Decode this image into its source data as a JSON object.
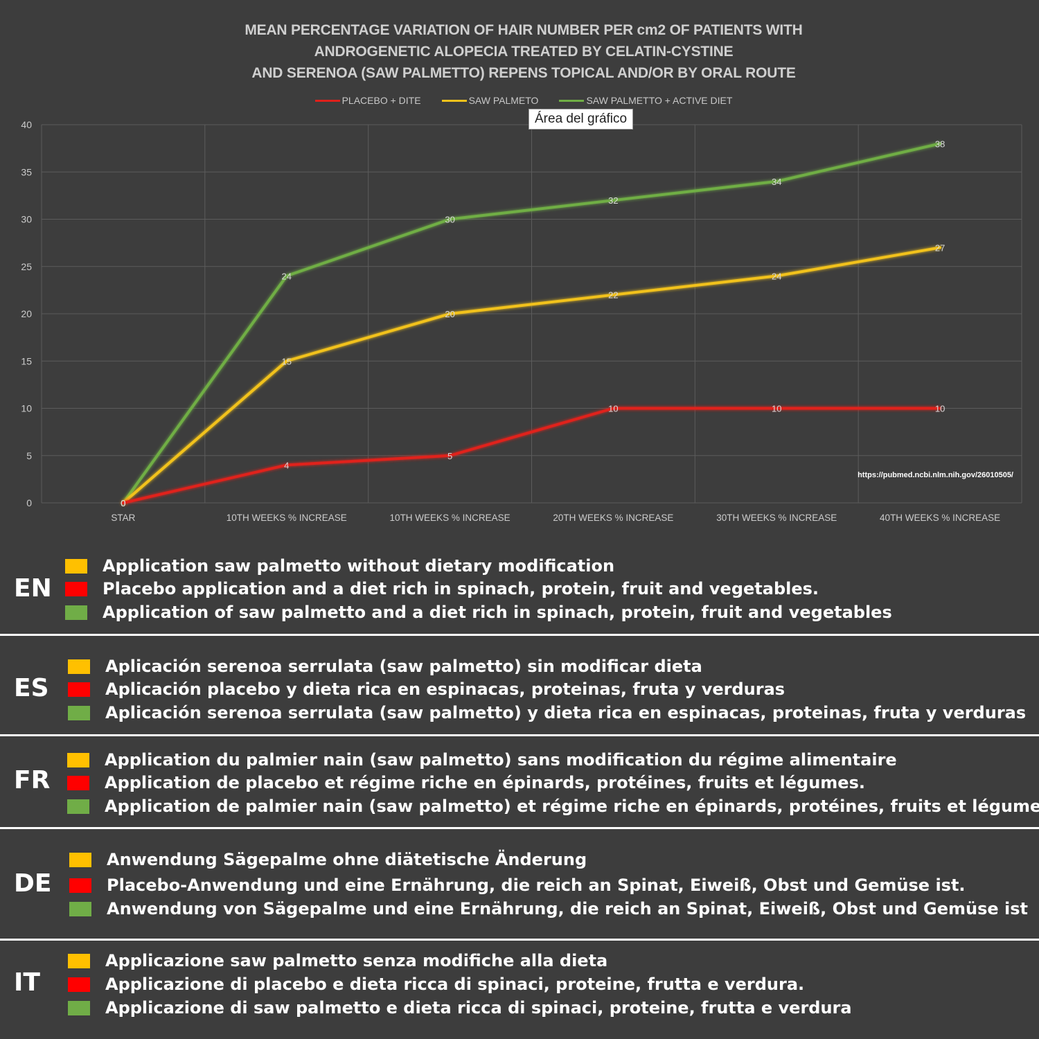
{
  "chart_data": {
    "type": "line",
    "title_lines": [
      "MEAN PERCENTAGE VARIATION OF HAIR NUMBER PER cm2 OF PATIENTS WITH",
      "ANDROGENETIC ALOPECIA TREATED BY CELATIN-CYSTINE",
      "AND SERENOA (SAW PALMETTO) REPENS TOPICAL AND/OR BY ORAL ROUTE"
    ],
    "categories": [
      "STAR",
      "10TH WEEKS % INCREASE",
      "10TH WEEKS % INCREASE",
      "20TH WEEKS % INCREASE",
      "30TH WEEKS % INCREASE",
      "40TH WEEKS % INCREASE"
    ],
    "series": [
      {
        "name": "PLACEBO + DITE",
        "color": "#e0201b",
        "values": [
          0,
          4,
          5,
          10,
          10,
          10
        ]
      },
      {
        "name": "SAW PALMETO",
        "color": "#f2c21b",
        "values": [
          0,
          15,
          20,
          22,
          24,
          27
        ]
      },
      {
        "name": "SAW PALMETTO + ACTIVE DIET",
        "color": "#6fae45",
        "values": [
          0,
          24,
          30,
          32,
          34,
          38
        ]
      }
    ],
    "y_ticks": [
      "0",
      "5",
      "10",
      "15",
      "20",
      "25",
      "30",
      "35",
      "40"
    ],
    "ylim": [
      0,
      40
    ],
    "grid": true,
    "legend_position": "top-center",
    "tooltip": "Área del gráfico",
    "source": "https://pubmed.ncbi.nlm.nih.gov/26010505/"
  },
  "languages": [
    {
      "code": "EN",
      "lines": [
        {
          "color": "#ffc000",
          "text": "Application saw palmetto without dietary modification"
        },
        {
          "color": "#ff0000",
          "text": "Placebo application and a diet rich in spinach, protein, fruit and vegetables."
        },
        {
          "color": "#70ad47",
          "text": "Application of saw palmetto and a diet rich in spinach, protein, fruit and vegetables"
        }
      ]
    },
    {
      "code": "ES",
      "lines": [
        {
          "color": "#ffc000",
          "text": "Aplicación serenoa serrulata (saw palmetto) sin modificar dieta"
        },
        {
          "color": "#ff0000",
          "text": "Aplicación placebo y dieta rica en espinacas, proteinas, fruta y verduras"
        },
        {
          "color": "#70ad47",
          "text": "Aplicación serenoa serrulata (saw palmetto) y dieta rica en espinacas, proteinas, fruta y verduras"
        }
      ]
    },
    {
      "code": "FR",
      "lines": [
        {
          "color": "#ffc000",
          "text": "Application du palmier nain (saw palmetto) sans modification du régime alimentaire"
        },
        {
          "color": "#ff0000",
          "text": "Application de placebo et régime riche en épinards, protéines, fruits et légumes."
        },
        {
          "color": "#70ad47",
          "text": "Application de palmier nain (saw palmetto) et régime riche en épinards, protéines, fruits et légumes."
        }
      ]
    },
    {
      "code": "DE",
      "lines": [
        {
          "color": "#ffc000",
          "text": "Anwendung Sägepalme ohne diätetische Änderung"
        },
        {
          "color": "#ff0000",
          "text": "Placebo-Anwendung und eine Ernährung, die reich an Spinat, Eiweiß, Obst und Gemüse ist."
        },
        {
          "color": "#70ad47",
          "text": "Anwendung von Sägepalme und eine Ernährung, die reich an Spinat, Eiweiß, Obst und Gemüse ist"
        }
      ]
    },
    {
      "code": "IT",
      "lines": [
        {
          "color": "#ffc000",
          "text": "Applicazione saw palmetto senza modifiche alla dieta"
        },
        {
          "color": "#ff0000",
          "text": "Applicazione di placebo e dieta ricca di spinaci, proteine, frutta e verdura."
        },
        {
          "color": "#70ad47",
          "text": "Applicazione di saw palmetto e dieta ricca di spinaci, proteine, frutta e verdura"
        }
      ]
    }
  ]
}
